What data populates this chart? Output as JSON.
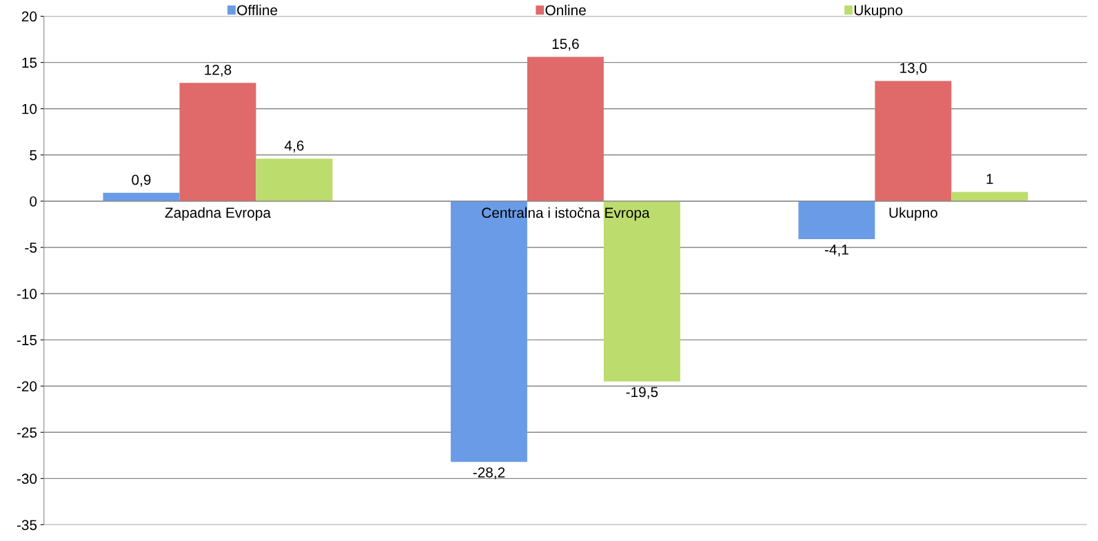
{
  "chart_data": {
    "type": "bar",
    "categories": [
      "Zapadna Evropa",
      "Centralna i istočna Evropa",
      "Ukupno"
    ],
    "series": [
      {
        "name": "Offline",
        "color": "#6a9be6",
        "values": [
          0.9,
          -28.2,
          -4.1
        ],
        "value_labels": [
          "0,9",
          "-28,2",
          "-4,1"
        ]
      },
      {
        "name": "Online",
        "color": "#e06a6a",
        "values": [
          12.8,
          15.6,
          13.0
        ],
        "value_labels": [
          "12,8",
          "15,6",
          "13,0"
        ]
      },
      {
        "name": "Ukupno",
        "color": "#bcdc6e",
        "values": [
          4.6,
          -19.5,
          1
        ],
        "value_labels": [
          "4,6",
          "-19,5",
          "1"
        ]
      }
    ],
    "ylim": [
      -35,
      20
    ],
    "yticks": [
      -35,
      -30,
      -25,
      -20,
      -15,
      -10,
      -5,
      0,
      5,
      10,
      15,
      20
    ],
    "grid": "y",
    "legend": "top"
  }
}
